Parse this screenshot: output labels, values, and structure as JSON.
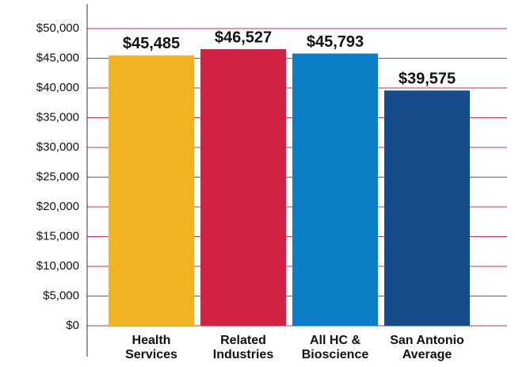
{
  "chart_data": {
    "type": "bar",
    "categories": [
      "Health Services",
      "Related Industries",
      "All HC & Bioscience",
      "San Antonio Average"
    ],
    "values": [
      45485,
      46527,
      45793,
      39575
    ],
    "value_labels": [
      "$45,485",
      "$46,527",
      "$45,793",
      "$39,575"
    ],
    "colors": [
      "#f0b323",
      "#d42245",
      "#0a7ec6",
      "#164b8c"
    ],
    "ylim": [
      0,
      50000
    ],
    "yticks": [
      {
        "value": 0,
        "label": "$0"
      },
      {
        "value": 5000,
        "label": "$5,000"
      },
      {
        "value": 10000,
        "label": "$10,000"
      },
      {
        "value": 15000,
        "label": "$15,000"
      },
      {
        "value": 20000,
        "label": "$20,000"
      },
      {
        "value": 25000,
        "label": "$25,000"
      },
      {
        "value": 30000,
        "label": "$30,000"
      },
      {
        "value": 35000,
        "label": "$35,000"
      },
      {
        "value": 40000,
        "label": "$40,000"
      },
      {
        "value": 45000,
        "label": "$45,000"
      },
      {
        "value": 50000,
        "label": "$50,000"
      }
    ],
    "grid": true
  }
}
